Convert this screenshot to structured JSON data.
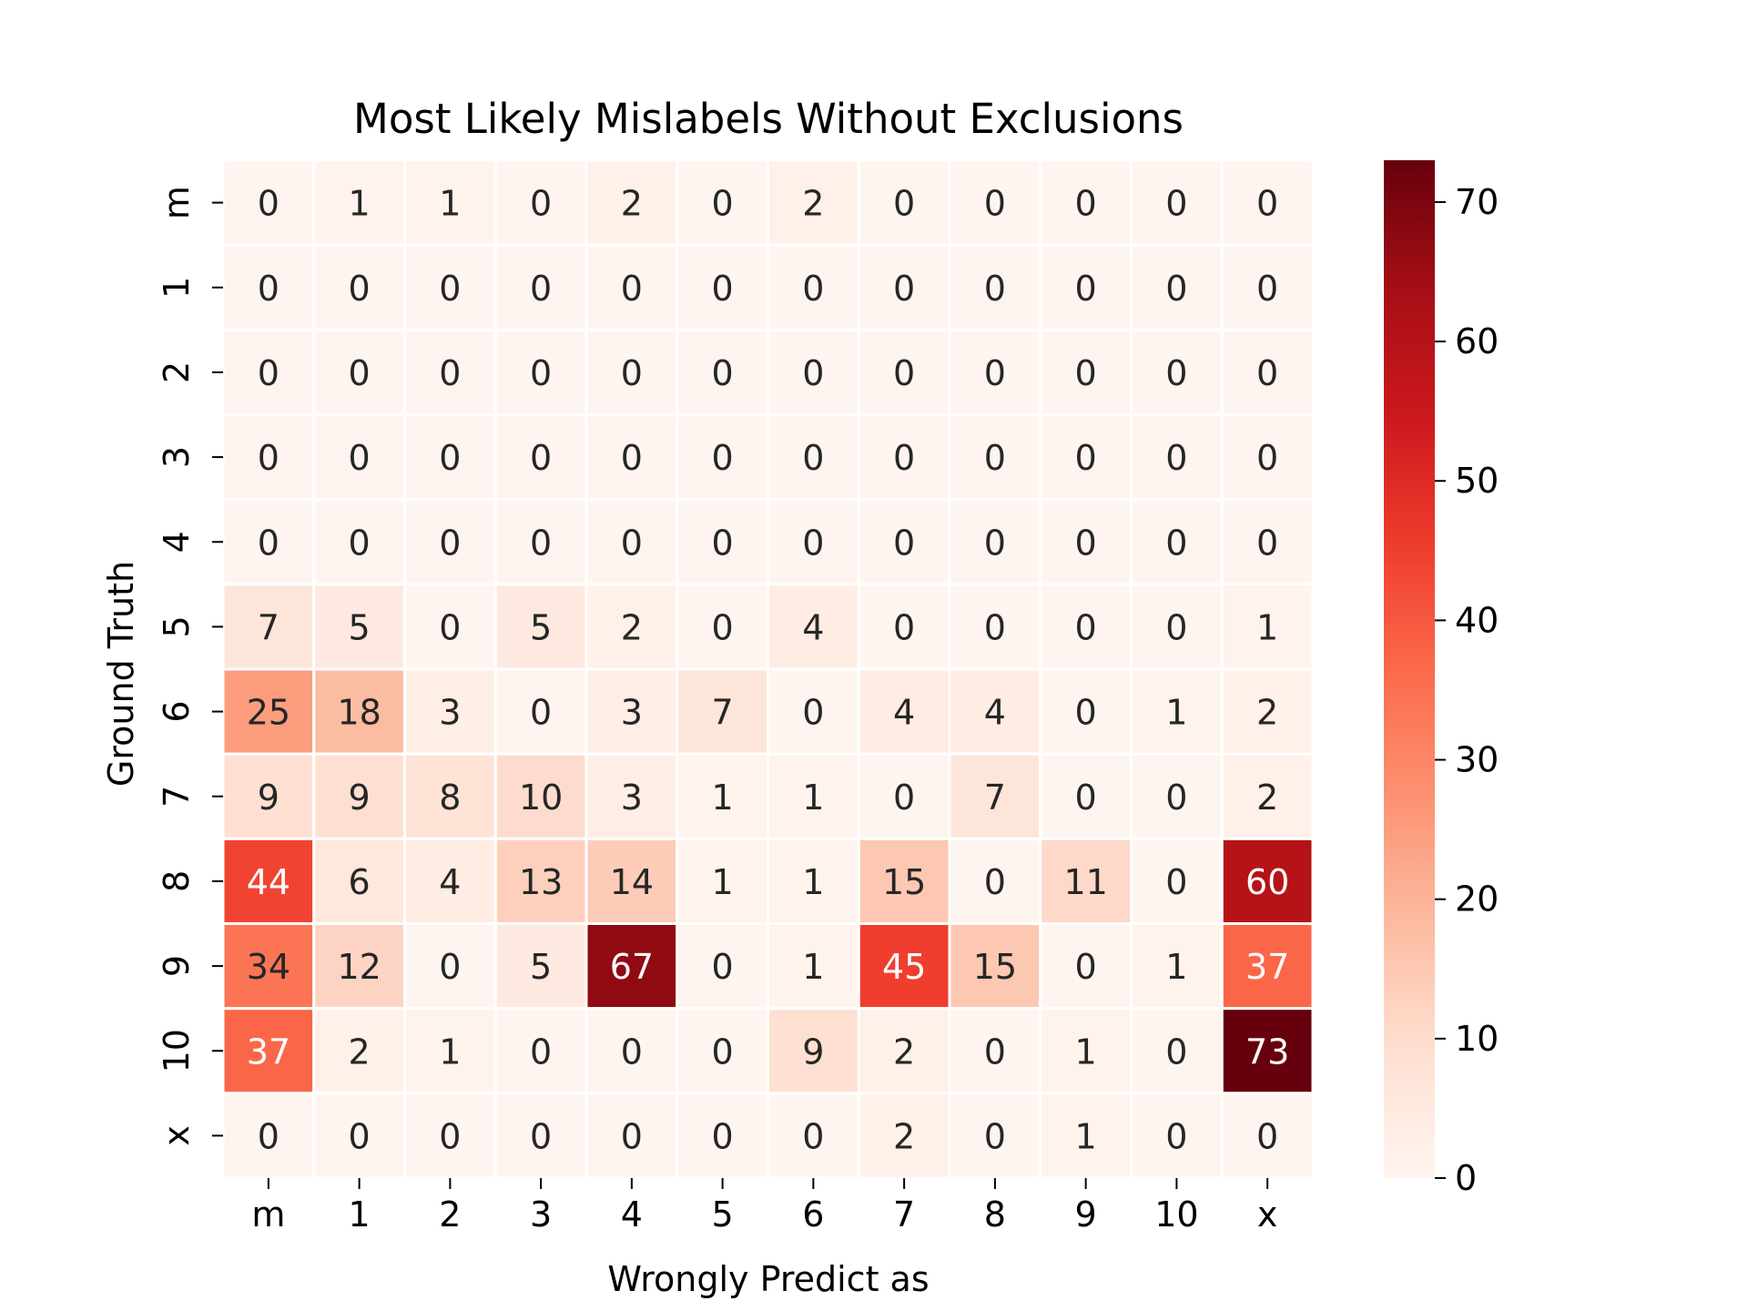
{
  "chart_data": {
    "type": "heatmap",
    "title": "Most Likely Mislabels Without Exclusions",
    "xlabel": "Wrongly Predict as",
    "ylabel": "Ground Truth",
    "x_categories": [
      "m",
      "1",
      "2",
      "3",
      "4",
      "5",
      "6",
      "7",
      "8",
      "9",
      "10",
      "x"
    ],
    "y_categories": [
      "m",
      "1",
      "2",
      "3",
      "4",
      "5",
      "6",
      "7",
      "8",
      "9",
      "10",
      "x"
    ],
    "values": [
      [
        0,
        1,
        1,
        0,
        2,
        0,
        2,
        0,
        0,
        0,
        0,
        0
      ],
      [
        0,
        0,
        0,
        0,
        0,
        0,
        0,
        0,
        0,
        0,
        0,
        0
      ],
      [
        0,
        0,
        0,
        0,
        0,
        0,
        0,
        0,
        0,
        0,
        0,
        0
      ],
      [
        0,
        0,
        0,
        0,
        0,
        0,
        0,
        0,
        0,
        0,
        0,
        0
      ],
      [
        0,
        0,
        0,
        0,
        0,
        0,
        0,
        0,
        0,
        0,
        0,
        0
      ],
      [
        7,
        5,
        0,
        5,
        2,
        0,
        4,
        0,
        0,
        0,
        0,
        1
      ],
      [
        25,
        18,
        3,
        0,
        3,
        7,
        0,
        4,
        4,
        0,
        1,
        2
      ],
      [
        9,
        9,
        8,
        10,
        3,
        1,
        1,
        0,
        7,
        0,
        0,
        2
      ],
      [
        44,
        6,
        4,
        13,
        14,
        1,
        1,
        15,
        0,
        11,
        0,
        60
      ],
      [
        34,
        12,
        0,
        5,
        67,
        0,
        1,
        45,
        15,
        0,
        1,
        37
      ],
      [
        37,
        2,
        1,
        0,
        0,
        0,
        9,
        2,
        0,
        1,
        0,
        73
      ],
      [
        0,
        0,
        0,
        0,
        0,
        0,
        0,
        2,
        0,
        1,
        0,
        0
      ]
    ],
    "colormap": "Reds",
    "colorbar": {
      "min": 0,
      "max": 73,
      "ticks": [
        0,
        10,
        20,
        30,
        40,
        50,
        60,
        70
      ]
    },
    "grid": false,
    "legend": "colorbar-right"
  }
}
